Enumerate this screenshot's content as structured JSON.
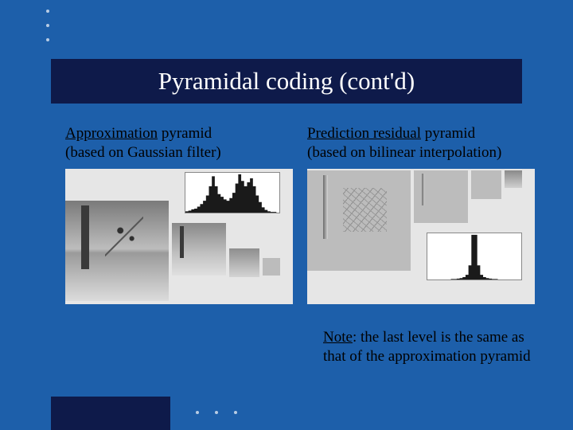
{
  "title": "Pyramidal coding (cont'd)",
  "left": {
    "heading_underlined": "Approximation",
    "heading_rest": " pyramid",
    "subheading": "(based on Gaussian filter)",
    "figure": {
      "type": "infographic",
      "background_color": "#e6e6e6",
      "pyramid_levels": 4,
      "histogram": {
        "type": "histogram",
        "background_color": "#ffffff",
        "border_color": "#888888",
        "fill_color": "#1a1a1a",
        "xlim": [
          0,
          255
        ],
        "bins": [
          2,
          3,
          5,
          6,
          9,
          13,
          18,
          26,
          40,
          55,
          40,
          28,
          24,
          20,
          18,
          22,
          30,
          44,
          58,
          48,
          40,
          46,
          52,
          40,
          26,
          16,
          8,
          4,
          2,
          1,
          1,
          0
        ]
      }
    }
  },
  "right": {
    "heading_underlined": "Prediction residual",
    "heading_rest": "  pyramid",
    "subheading": "(based on bilinear interpolation)",
    "figure": {
      "type": "infographic",
      "background_color": "#e6e6e6",
      "pyramid_levels": 4,
      "histogram": {
        "type": "histogram",
        "background_color": "#ffffff",
        "border_color": "#888888",
        "fill_color": "#1a1a1a",
        "xlim": [
          -128,
          127
        ],
        "bins": [
          0,
          0,
          0,
          0,
          0,
          0,
          0,
          0,
          1,
          1,
          2,
          3,
          5,
          10,
          30,
          95,
          95,
          30,
          10,
          5,
          3,
          2,
          1,
          1,
          0,
          0,
          0,
          0,
          0,
          0,
          0,
          0
        ]
      }
    }
  },
  "note": {
    "label_underlined": "Note",
    "text": ": the last level is the same as that of the approximation pyramid"
  },
  "colors": {
    "slide_bg": "#1d5faa",
    "title_bg": "#0e1a4a",
    "title_text": "#ffffff",
    "body_text": "#000000",
    "dot": "#b8cce4"
  },
  "typography": {
    "title_fontsize_pt": 24,
    "body_fontsize_pt": 15,
    "font_family": "serif"
  }
}
